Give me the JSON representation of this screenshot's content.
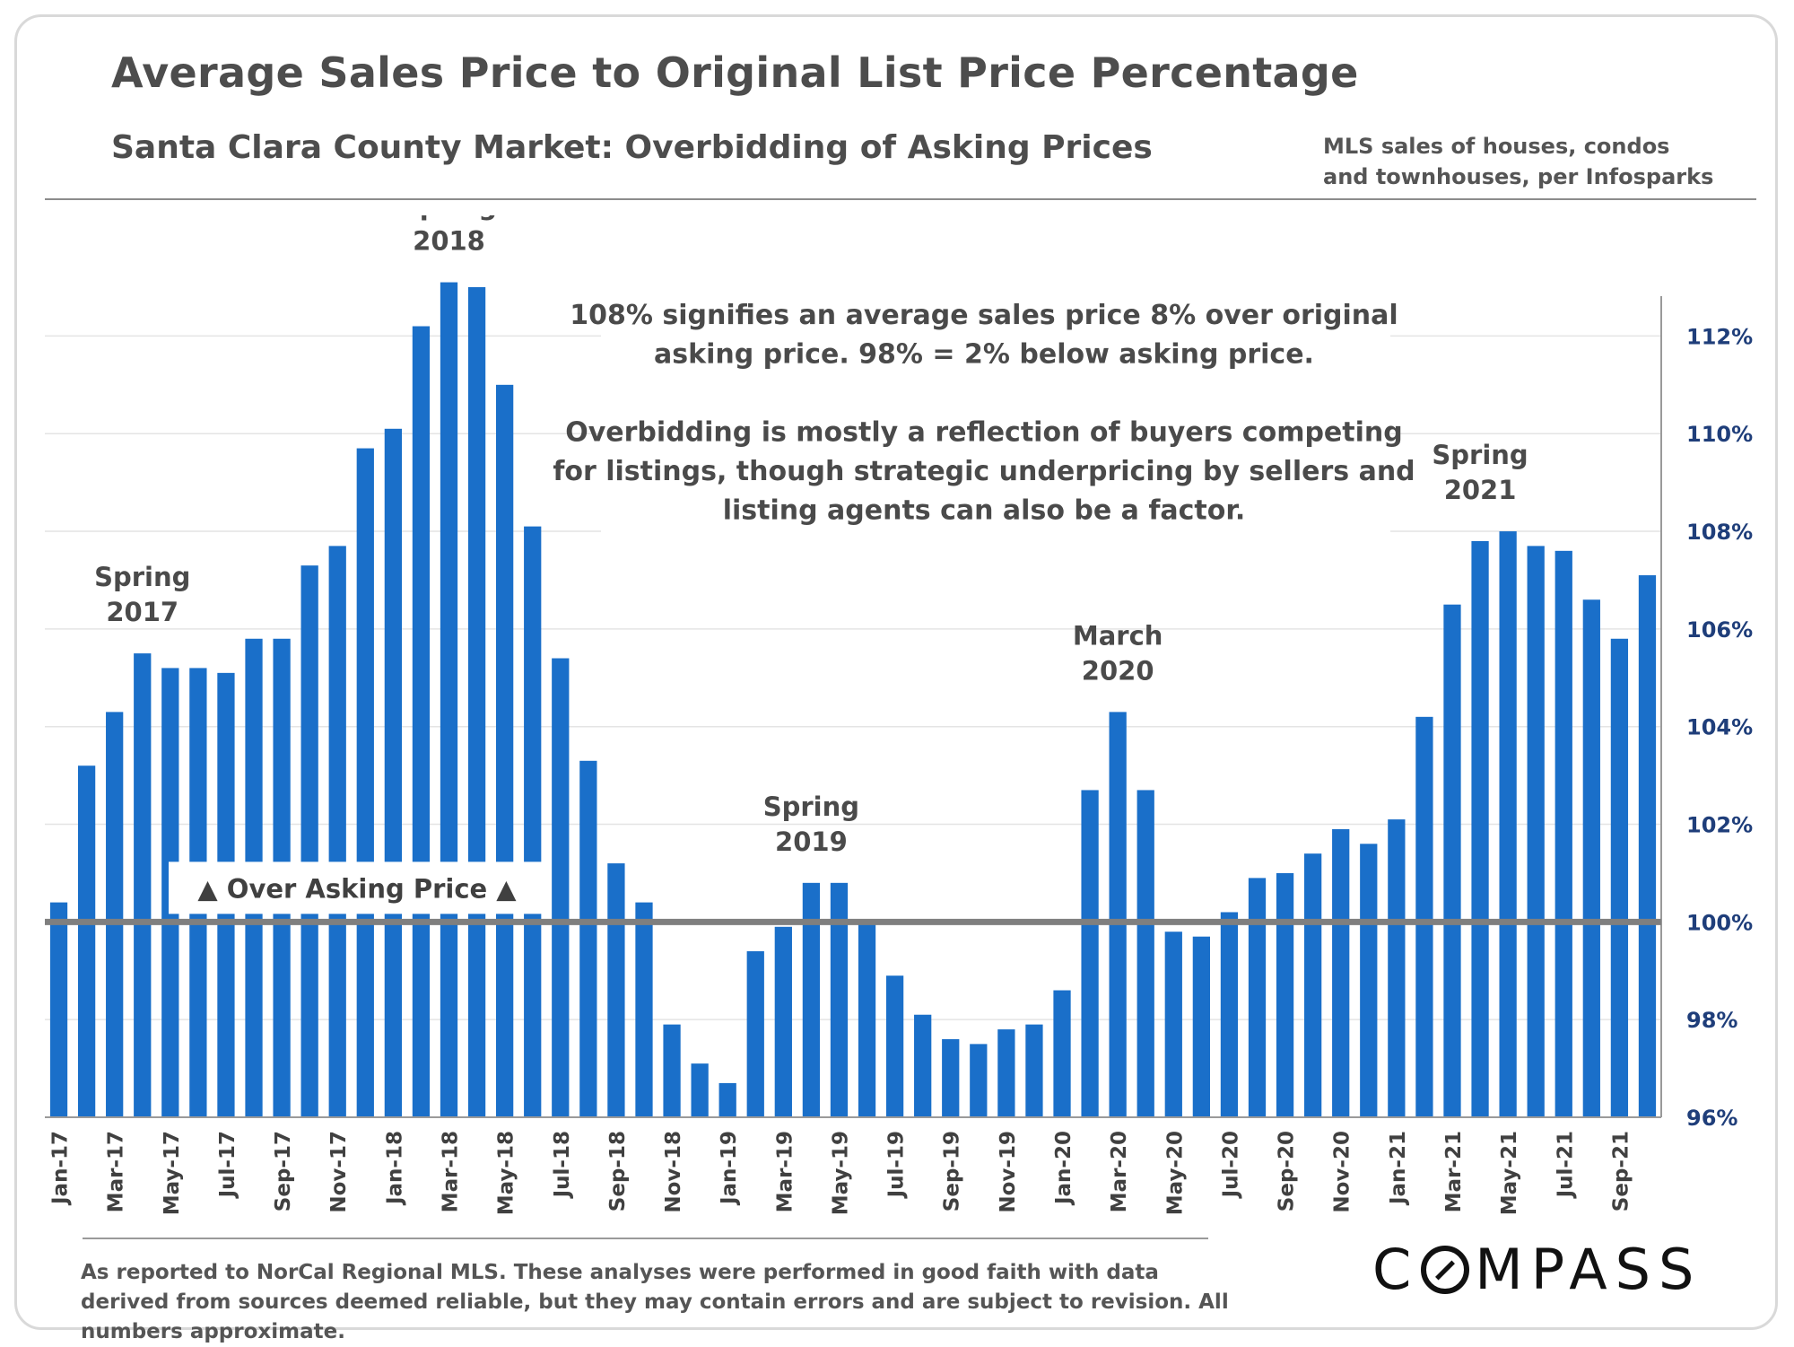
{
  "title": "Average Sales Price to Original List Price Percentage",
  "subtitle": "Santa Clara County Market: Overbidding of Asking Prices",
  "source_note": "MLS sales of houses, condos and townhouses, per Infosparks",
  "footer_note": "As reported to NorCal Regional MLS. These analyses were performed in good faith with data derived from sources deemed reliable, but they may contain errors and are subject to revision. All numbers approximate.",
  "brand": {
    "before": "C",
    "o": "O",
    "after": "MPASS"
  },
  "colors": {
    "bar": "#1a6fc9",
    "baseline": "#7f7f7f",
    "axis_label": "#1f3e7a",
    "text": "#4a4a4a"
  },
  "chart_data": {
    "type": "bar",
    "categories": [
      "Jan-17",
      "Feb-17",
      "Mar-17",
      "Apr-17",
      "May-17",
      "Jun-17",
      "Jul-17",
      "Aug-17",
      "Sep-17",
      "Oct-17",
      "Nov-17",
      "Dec-17",
      "Jan-18",
      "Feb-18",
      "Mar-18",
      "Apr-18",
      "May-18",
      "Jun-18",
      "Jul-18",
      "Aug-18",
      "Sep-18",
      "Oct-18",
      "Nov-18",
      "Dec-18",
      "Jan-19",
      "Feb-19",
      "Mar-19",
      "Apr-19",
      "May-19",
      "Jun-19",
      "Jul-19",
      "Aug-19",
      "Sep-19",
      "Oct-19",
      "Nov-19",
      "Dec-19",
      "Jan-20",
      "Feb-20",
      "Mar-20",
      "Apr-20",
      "May-20",
      "Jun-20",
      "Jul-20",
      "Aug-20",
      "Sep-20",
      "Oct-20",
      "Nov-20",
      "Dec-20",
      "Jan-21",
      "Feb-21",
      "Mar-21",
      "Apr-21",
      "May-21",
      "Jun-21",
      "Jul-21",
      "Aug-21",
      "Sep-21",
      "Oct-21"
    ],
    "tick_labels": [
      "Jan-17",
      "Mar-17",
      "May-17",
      "Jul-17",
      "Sep-17",
      "Nov-17",
      "Jan-18",
      "Mar-18",
      "May-18",
      "Jul-18",
      "Sep-18",
      "Nov-18",
      "Jan-19",
      "Mar-19",
      "May-19",
      "Jul-19",
      "Sep-19",
      "Nov-19",
      "Jan-20",
      "Mar-20",
      "May-20",
      "Jul-20",
      "Sep-20",
      "Nov-20",
      "Jan-21",
      "Mar-21",
      "May-21",
      "Jul-21",
      "Sep-21"
    ],
    "values": [
      100.4,
      103.2,
      104.3,
      105.5,
      105.2,
      105.2,
      105.1,
      105.8,
      105.8,
      107.3,
      107.7,
      109.7,
      110.1,
      112.2,
      113.1,
      113.0,
      111.0,
      108.1,
      105.4,
      103.3,
      101.2,
      100.4,
      97.9,
      97.1,
      96.7,
      99.4,
      99.9,
      100.8,
      100.8,
      100.0,
      98.9,
      98.1,
      97.6,
      97.5,
      97.8,
      97.9,
      98.6,
      102.7,
      104.3,
      102.7,
      99.8,
      99.7,
      100.2,
      100.9,
      101.0,
      101.4,
      101.9,
      101.6,
      102.1,
      104.2,
      106.5,
      107.8,
      108.0,
      107.7,
      107.6,
      106.6,
      105.8,
      107.1
    ],
    "ylim": [
      96,
      113
    ],
    "yticks": [
      96,
      98,
      100,
      102,
      104,
      106,
      108,
      110,
      112
    ],
    "ytick_format": "%",
    "y_axis_position": "right",
    "grid": true,
    "baseline": 100,
    "baseline_label": "▲ Over Asking Price ▲",
    "annotations": [
      {
        "text": [
          "Spring",
          "2017"
        ],
        "at": "Apr-17"
      },
      {
        "text": [
          "Spring",
          "2018"
        ],
        "at": "Mar-18"
      },
      {
        "text": [
          "Spring",
          "2019"
        ],
        "at": "Apr-19"
      },
      {
        "text": [
          "March",
          "2020"
        ],
        "at": "Mar-20"
      },
      {
        "text": [
          "Spring",
          "2021"
        ],
        "at": "Apr-21"
      }
    ],
    "explanation": [
      "108% signifies an average sales price 8% over original",
      "asking price. 98% = 2% below asking price.",
      "",
      "Overbidding is mostly a reflection of buyers competing",
      "for listings, though strategic underpricing by sellers and",
      "listing agents can also be a factor."
    ]
  }
}
